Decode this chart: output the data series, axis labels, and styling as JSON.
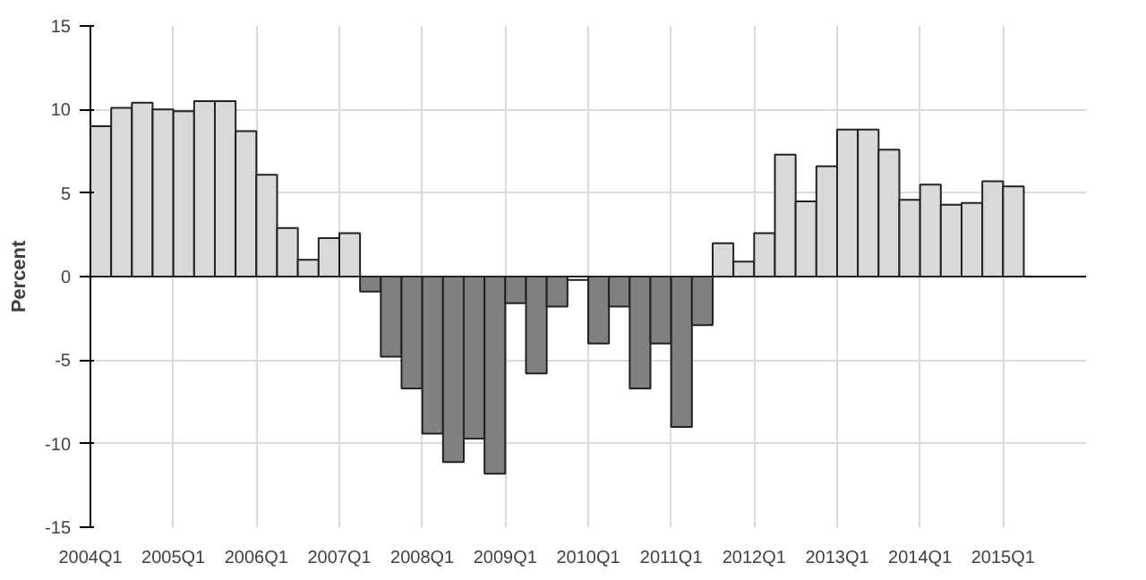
{
  "chart_data": {
    "type": "bar",
    "ylabel": "Percent",
    "categories": [
      "2004Q1",
      null,
      null,
      null,
      "2005Q1",
      null,
      null,
      null,
      "2006Q1",
      null,
      null,
      null,
      "2007Q1",
      null,
      null,
      null,
      "2008Q1",
      null,
      null,
      null,
      "2009Q1",
      null,
      null,
      null,
      "2010Q1",
      null,
      null,
      null,
      "2011Q1",
      null,
      null,
      null,
      "2012Q1",
      null,
      null,
      null,
      "2013Q1",
      null,
      null,
      null,
      "2014Q1",
      null,
      null,
      null,
      "2015Q1",
      null,
      null,
      null
    ],
    "values": [
      9.0,
      10.1,
      10.4,
      10.0,
      9.9,
      10.5,
      10.5,
      8.7,
      6.1,
      2.9,
      1.0,
      2.3,
      2.6,
      -0.9,
      -4.8,
      -6.7,
      -9.4,
      -11.1,
      -9.7,
      -11.8,
      -1.6,
      -5.8,
      -1.8,
      -0.2,
      -4.0,
      -1.8,
      -6.7,
      -4.0,
      -9.0,
      -2.9,
      2.0,
      0.9,
      2.6,
      7.3,
      4.5,
      6.6,
      8.8,
      8.8,
      7.6,
      4.6,
      5.5,
      4.3,
      4.4,
      5.7,
      5.4,
      null,
      null,
      null
    ],
    "colors": [
      "#d9d9d9",
      "#d9d9d9",
      "#d9d9d9",
      "#d9d9d9",
      "#d9d9d9",
      "#d9d9d9",
      "#d9d9d9",
      "#d9d9d9",
      "#d9d9d9",
      "#d9d9d9",
      "#d9d9d9",
      "#d9d9d9",
      "#d9d9d9",
      "#808080",
      "#808080",
      "#808080",
      "#808080",
      "#808080",
      "#808080",
      "#808080",
      "#808080",
      "#808080",
      "#808080",
      "#ffffff",
      "#808080",
      "#808080",
      "#808080",
      "#808080",
      "#808080",
      "#808080",
      "#d9d9d9",
      "#d9d9d9",
      "#d9d9d9",
      "#d9d9d9",
      "#d9d9d9",
      "#d9d9d9",
      "#d9d9d9",
      "#d9d9d9",
      "#d9d9d9",
      "#d9d9d9",
      "#d9d9d9",
      "#d9d9d9",
      "#d9d9d9",
      "#d9d9d9",
      "#d9d9d9",
      "#d9d9d9",
      "#d9d9d9",
      "#d9d9d9"
    ],
    "ylim": [
      -15,
      15
    ],
    "yticks": [
      -15,
      -10,
      -5,
      0,
      5,
      10,
      15
    ],
    "grid": true
  }
}
